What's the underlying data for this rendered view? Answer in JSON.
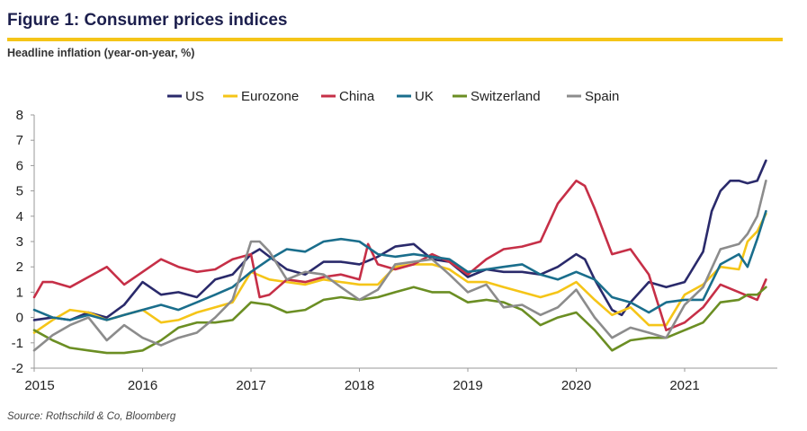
{
  "figure": {
    "title": "Figure 1: Consumer prices indices",
    "subtitle": "Headline inflation (year-on-year, %)",
    "source": "Source: Rothschild & Co, Bloomberg"
  },
  "chart_data": {
    "type": "line",
    "title": "Figure 1: Consumer prices indices",
    "subtitle": "Headline inflation (year-on-year, %)",
    "xlabel": "",
    "ylabel": "",
    "x_ticks": [
      "2015",
      "2016",
      "2017",
      "2018",
      "2019",
      "2020",
      "2021"
    ],
    "x_range": [
      2015.0,
      2021.83
    ],
    "ylim": [
      -2,
      8
    ],
    "y_ticks": [
      -2,
      -1,
      0,
      1,
      2,
      3,
      4,
      5,
      6,
      7,
      8
    ],
    "grid": false,
    "legend_position": "top",
    "series": [
      {
        "name": "US",
        "color": "#2a2a6b",
        "points": [
          [
            2015.0,
            -0.1
          ],
          [
            2015.17,
            0.0
          ],
          [
            2015.33,
            -0.1
          ],
          [
            2015.5,
            0.2
          ],
          [
            2015.67,
            0.0
          ],
          [
            2015.83,
            0.5
          ],
          [
            2016.0,
            1.4
          ],
          [
            2016.17,
            0.9
          ],
          [
            2016.33,
            1.0
          ],
          [
            2016.5,
            0.8
          ],
          [
            2016.67,
            1.5
          ],
          [
            2016.83,
            1.7
          ],
          [
            2017.0,
            2.5
          ],
          [
            2017.08,
            2.7
          ],
          [
            2017.17,
            2.4
          ],
          [
            2017.33,
            1.9
          ],
          [
            2017.5,
            1.7
          ],
          [
            2017.67,
            2.2
          ],
          [
            2017.83,
            2.2
          ],
          [
            2018.0,
            2.1
          ],
          [
            2018.17,
            2.4
          ],
          [
            2018.33,
            2.8
          ],
          [
            2018.5,
            2.9
          ],
          [
            2018.67,
            2.3
          ],
          [
            2018.83,
            2.2
          ],
          [
            2019.0,
            1.6
          ],
          [
            2019.17,
            1.9
          ],
          [
            2019.33,
            1.8
          ],
          [
            2019.5,
            1.8
          ],
          [
            2019.67,
            1.7
          ],
          [
            2019.83,
            2.0
          ],
          [
            2020.0,
            2.5
          ],
          [
            2020.08,
            2.3
          ],
          [
            2020.17,
            1.5
          ],
          [
            2020.33,
            0.3
          ],
          [
            2020.42,
            0.1
          ],
          [
            2020.5,
            0.6
          ],
          [
            2020.67,
            1.4
          ],
          [
            2020.83,
            1.2
          ],
          [
            2021.0,
            1.4
          ],
          [
            2021.17,
            2.6
          ],
          [
            2021.25,
            4.2
          ],
          [
            2021.33,
            5.0
          ],
          [
            2021.42,
            5.4
          ],
          [
            2021.5,
            5.4
          ],
          [
            2021.58,
            5.3
          ],
          [
            2021.67,
            5.4
          ],
          [
            2021.75,
            6.2
          ]
        ]
      },
      {
        "name": "Eurozone",
        "color": "#f5c518",
        "points": [
          [
            2015.0,
            -0.6
          ],
          [
            2015.17,
            -0.1
          ],
          [
            2015.33,
            0.3
          ],
          [
            2015.5,
            0.2
          ],
          [
            2015.67,
            -0.1
          ],
          [
            2015.83,
            0.1
          ],
          [
            2016.0,
            0.3
          ],
          [
            2016.17,
            -0.2
          ],
          [
            2016.33,
            -0.1
          ],
          [
            2016.5,
            0.2
          ],
          [
            2016.67,
            0.4
          ],
          [
            2016.83,
            0.6
          ],
          [
            2017.0,
            1.8
          ],
          [
            2017.17,
            1.5
          ],
          [
            2017.33,
            1.4
          ],
          [
            2017.5,
            1.3
          ],
          [
            2017.67,
            1.5
          ],
          [
            2017.83,
            1.4
          ],
          [
            2018.0,
            1.3
          ],
          [
            2018.17,
            1.3
          ],
          [
            2018.33,
            2.0
          ],
          [
            2018.5,
            2.1
          ],
          [
            2018.67,
            2.1
          ],
          [
            2018.83,
            1.9
          ],
          [
            2019.0,
            1.4
          ],
          [
            2019.17,
            1.4
          ],
          [
            2019.33,
            1.2
          ],
          [
            2019.5,
            1.0
          ],
          [
            2019.67,
            0.8
          ],
          [
            2019.83,
            1.0
          ],
          [
            2020.0,
            1.4
          ],
          [
            2020.17,
            0.7
          ],
          [
            2020.33,
            0.1
          ],
          [
            2020.5,
            0.4
          ],
          [
            2020.67,
            -0.3
          ],
          [
            2020.83,
            -0.3
          ],
          [
            2021.0,
            0.9
          ],
          [
            2021.17,
            1.3
          ],
          [
            2021.33,
            2.0
          ],
          [
            2021.5,
            1.9
          ],
          [
            2021.58,
            3.0
          ],
          [
            2021.67,
            3.4
          ],
          [
            2021.75,
            4.1
          ]
        ]
      },
      {
        "name": "China",
        "color": "#c62f47",
        "points": [
          [
            2015.0,
            0.8
          ],
          [
            2015.08,
            1.4
          ],
          [
            2015.17,
            1.4
          ],
          [
            2015.33,
            1.2
          ],
          [
            2015.5,
            1.6
          ],
          [
            2015.67,
            2.0
          ],
          [
            2015.83,
            1.3
          ],
          [
            2016.0,
            1.8
          ],
          [
            2016.17,
            2.3
          ],
          [
            2016.33,
            2.0
          ],
          [
            2016.5,
            1.8
          ],
          [
            2016.67,
            1.9
          ],
          [
            2016.83,
            2.3
          ],
          [
            2017.0,
            2.5
          ],
          [
            2017.08,
            0.8
          ],
          [
            2017.17,
            0.9
          ],
          [
            2017.33,
            1.5
          ],
          [
            2017.5,
            1.4
          ],
          [
            2017.67,
            1.6
          ],
          [
            2017.83,
            1.7
          ],
          [
            2018.0,
            1.5
          ],
          [
            2018.08,
            2.9
          ],
          [
            2018.17,
            2.1
          ],
          [
            2018.33,
            1.9
          ],
          [
            2018.5,
            2.1
          ],
          [
            2018.67,
            2.5
          ],
          [
            2018.83,
            2.2
          ],
          [
            2019.0,
            1.7
          ],
          [
            2019.17,
            2.3
          ],
          [
            2019.33,
            2.7
          ],
          [
            2019.5,
            2.8
          ],
          [
            2019.67,
            3.0
          ],
          [
            2019.83,
            4.5
          ],
          [
            2020.0,
            5.4
          ],
          [
            2020.08,
            5.2
          ],
          [
            2020.17,
            4.3
          ],
          [
            2020.33,
            2.5
          ],
          [
            2020.5,
            2.7
          ],
          [
            2020.67,
            1.7
          ],
          [
            2020.83,
            -0.5
          ],
          [
            2021.0,
            -0.2
          ],
          [
            2021.17,
            0.4
          ],
          [
            2021.33,
            1.3
          ],
          [
            2021.5,
            1.0
          ],
          [
            2021.67,
            0.7
          ],
          [
            2021.75,
            1.5
          ]
        ]
      },
      {
        "name": "UK",
        "color": "#1a6e8c",
        "points": [
          [
            2015.0,
            0.3
          ],
          [
            2015.17,
            0.0
          ],
          [
            2015.33,
            -0.1
          ],
          [
            2015.5,
            0.1
          ],
          [
            2015.67,
            -0.1
          ],
          [
            2015.83,
            0.1
          ],
          [
            2016.0,
            0.3
          ],
          [
            2016.17,
            0.5
          ],
          [
            2016.33,
            0.3
          ],
          [
            2016.5,
            0.6
          ],
          [
            2016.67,
            0.9
          ],
          [
            2016.83,
            1.2
          ],
          [
            2017.0,
            1.8
          ],
          [
            2017.17,
            2.3
          ],
          [
            2017.33,
            2.7
          ],
          [
            2017.5,
            2.6
          ],
          [
            2017.67,
            3.0
          ],
          [
            2017.83,
            3.1
          ],
          [
            2018.0,
            3.0
          ],
          [
            2018.17,
            2.5
          ],
          [
            2018.33,
            2.4
          ],
          [
            2018.5,
            2.5
          ],
          [
            2018.67,
            2.4
          ],
          [
            2018.83,
            2.3
          ],
          [
            2019.0,
            1.8
          ],
          [
            2019.17,
            1.9
          ],
          [
            2019.33,
            2.0
          ],
          [
            2019.5,
            2.1
          ],
          [
            2019.67,
            1.7
          ],
          [
            2019.83,
            1.5
          ],
          [
            2020.0,
            1.8
          ],
          [
            2020.17,
            1.5
          ],
          [
            2020.33,
            0.8
          ],
          [
            2020.5,
            0.6
          ],
          [
            2020.67,
            0.2
          ],
          [
            2020.83,
            0.6
          ],
          [
            2021.0,
            0.7
          ],
          [
            2021.17,
            0.7
          ],
          [
            2021.33,
            2.1
          ],
          [
            2021.5,
            2.5
          ],
          [
            2021.58,
            2.0
          ],
          [
            2021.67,
            3.1
          ],
          [
            2021.75,
            4.2
          ]
        ]
      },
      {
        "name": "Switzerland",
        "color": "#6b8e23",
        "points": [
          [
            2015.0,
            -0.5
          ],
          [
            2015.17,
            -0.9
          ],
          [
            2015.33,
            -1.2
          ],
          [
            2015.5,
            -1.3
          ],
          [
            2015.67,
            -1.4
          ],
          [
            2015.83,
            -1.4
          ],
          [
            2016.0,
            -1.3
          ],
          [
            2016.17,
            -0.9
          ],
          [
            2016.33,
            -0.4
          ],
          [
            2016.5,
            -0.2
          ],
          [
            2016.67,
            -0.2
          ],
          [
            2016.83,
            -0.1
          ],
          [
            2017.0,
            0.6
          ],
          [
            2017.17,
            0.5
          ],
          [
            2017.33,
            0.2
          ],
          [
            2017.5,
            0.3
          ],
          [
            2017.67,
            0.7
          ],
          [
            2017.83,
            0.8
          ],
          [
            2018.0,
            0.7
          ],
          [
            2018.17,
            0.8
          ],
          [
            2018.33,
            1.0
          ],
          [
            2018.5,
            1.2
          ],
          [
            2018.67,
            1.0
          ],
          [
            2018.83,
            1.0
          ],
          [
            2019.0,
            0.6
          ],
          [
            2019.17,
            0.7
          ],
          [
            2019.33,
            0.6
          ],
          [
            2019.5,
            0.3
          ],
          [
            2019.67,
            -0.3
          ],
          [
            2019.83,
            0.0
          ],
          [
            2020.0,
            0.2
          ],
          [
            2020.17,
            -0.5
          ],
          [
            2020.33,
            -1.3
          ],
          [
            2020.5,
            -0.9
          ],
          [
            2020.67,
            -0.8
          ],
          [
            2020.83,
            -0.8
          ],
          [
            2021.0,
            -0.5
          ],
          [
            2021.17,
            -0.2
          ],
          [
            2021.33,
            0.6
          ],
          [
            2021.5,
            0.7
          ],
          [
            2021.58,
            0.9
          ],
          [
            2021.67,
            0.9
          ],
          [
            2021.75,
            1.2
          ]
        ]
      },
      {
        "name": "Spain",
        "color": "#8c8c8c",
        "points": [
          [
            2015.0,
            -1.3
          ],
          [
            2015.17,
            -0.7
          ],
          [
            2015.33,
            -0.3
          ],
          [
            2015.5,
            0.0
          ],
          [
            2015.67,
            -0.9
          ],
          [
            2015.83,
            -0.3
          ],
          [
            2016.0,
            -0.8
          ],
          [
            2016.17,
            -1.1
          ],
          [
            2016.33,
            -0.8
          ],
          [
            2016.5,
            -0.6
          ],
          [
            2016.67,
            0.0
          ],
          [
            2016.83,
            0.7
          ],
          [
            2017.0,
            3.0
          ],
          [
            2017.08,
            3.0
          ],
          [
            2017.17,
            2.6
          ],
          [
            2017.33,
            1.5
          ],
          [
            2017.5,
            1.8
          ],
          [
            2017.67,
            1.7
          ],
          [
            2017.83,
            1.2
          ],
          [
            2018.0,
            0.7
          ],
          [
            2018.17,
            1.1
          ],
          [
            2018.33,
            2.1
          ],
          [
            2018.5,
            2.2
          ],
          [
            2018.67,
            2.3
          ],
          [
            2018.83,
            1.7
          ],
          [
            2019.0,
            1.0
          ],
          [
            2019.17,
            1.3
          ],
          [
            2019.33,
            0.4
          ],
          [
            2019.5,
            0.5
          ],
          [
            2019.67,
            0.1
          ],
          [
            2019.83,
            0.4
          ],
          [
            2020.0,
            1.1
          ],
          [
            2020.17,
            0.0
          ],
          [
            2020.33,
            -0.8
          ],
          [
            2020.5,
            -0.4
          ],
          [
            2020.67,
            -0.6
          ],
          [
            2020.83,
            -0.8
          ],
          [
            2021.0,
            0.5
          ],
          [
            2021.17,
            1.2
          ],
          [
            2021.33,
            2.7
          ],
          [
            2021.5,
            2.9
          ],
          [
            2021.58,
            3.3
          ],
          [
            2021.67,
            4.0
          ],
          [
            2021.75,
            5.4
          ]
        ]
      }
    ]
  }
}
